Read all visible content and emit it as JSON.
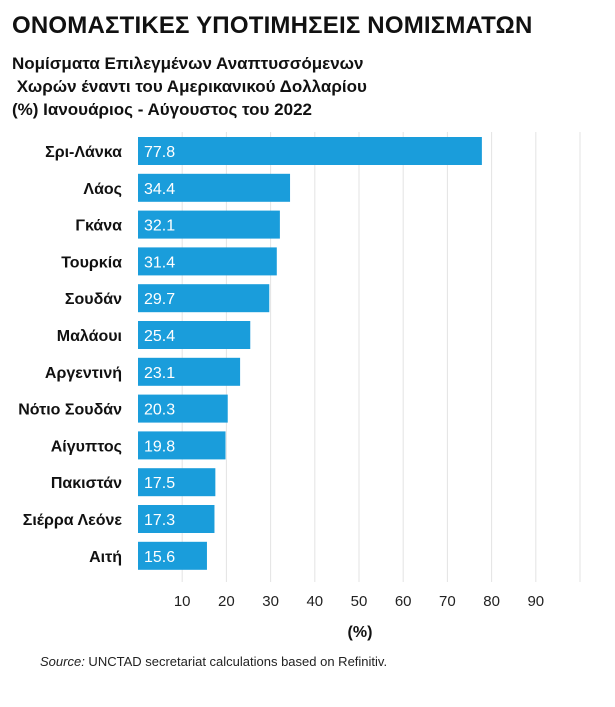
{
  "chart_data": {
    "type": "bar",
    "orientation": "horizontal",
    "title": "ΟΝΟΜΑΣΤΙΚΕΣ ΥΠΟΤΙΜΗΣΕΙΣ ΝΟΜΙΣΜΑΤΩΝ",
    "subtitle": "Νομίσματα Επιλεγμένων Αναπτυσσόμενων\n Χωρών έναντι του Αμερικανικού Δολλαρίου\n(%) Ιανουάριος - Αύγουστος του 2022",
    "categories": [
      "Σρι-Λάνκα",
      "Λάος",
      "Γκάνα",
      "Τουρκία",
      "Σουδάν",
      "Μαλάουι",
      "Αργεντινή",
      "Νότιο Σουδάν",
      "Αίγυπτος",
      "Πακιστάν",
      "Σιέρρα Λεόνε",
      "Αιτή"
    ],
    "values": [
      77.8,
      34.4,
      32.1,
      31.4,
      29.7,
      25.4,
      23.1,
      20.3,
      19.8,
      17.5,
      17.3,
      15.6
    ],
    "value_labels": [
      "77.8",
      "34.4",
      "32.1",
      "31.4",
      "29.7",
      "25.4",
      "23.1",
      "20.3",
      "19.8",
      "17.5",
      "17.3",
      "15.6"
    ],
    "xlabel": "(%)",
    "ylabel": "",
    "xlim": [
      0,
      100
    ],
    "xticks": [
      10,
      20,
      30,
      40,
      50,
      60,
      70,
      80,
      90
    ],
    "grid": true,
    "bar_color": "#1a9ddb",
    "grid_color": "#e3e3e3"
  },
  "source": {
    "prefix": "Source:",
    "text": " UNCTAD secretariat calculations based on Refinitiv."
  }
}
